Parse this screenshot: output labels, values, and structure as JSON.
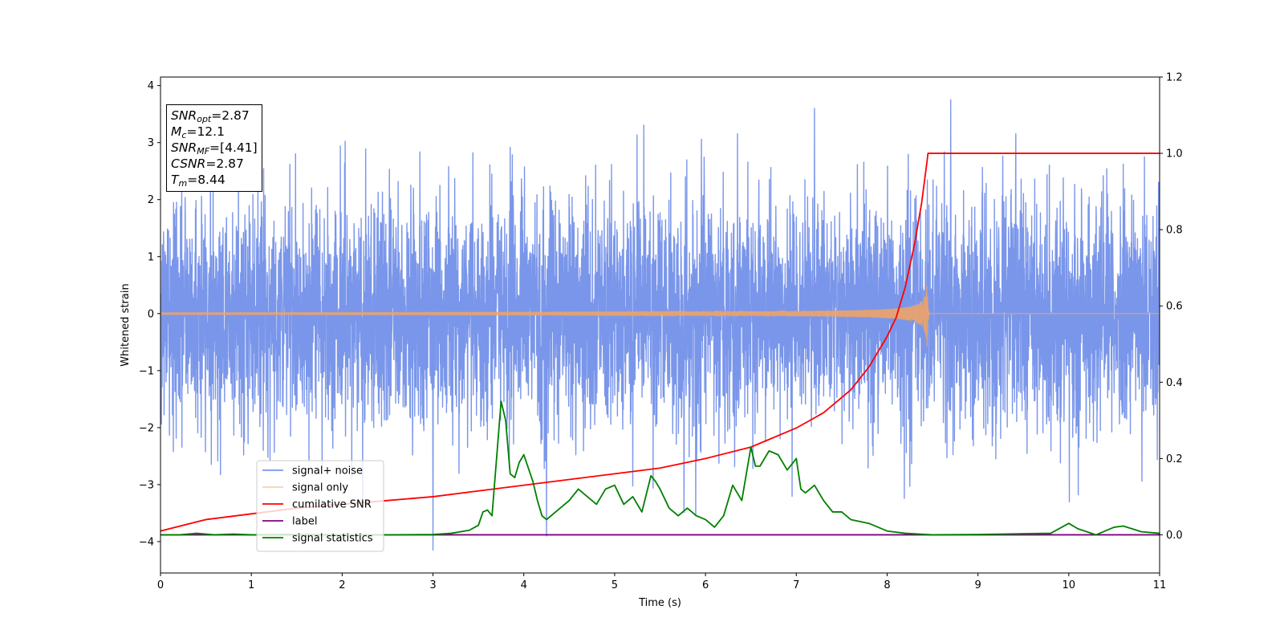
{
  "chart_data": {
    "type": "line",
    "title": "",
    "xlabel": "Time (s)",
    "ylabel": "Whitened strain",
    "y2label": "",
    "xlim": [
      0,
      11
    ],
    "ylim": [
      -4.55,
      4.15
    ],
    "y2lim": [
      -0.1,
      1.2
    ],
    "x_ticks": [
      0,
      1,
      2,
      3,
      4,
      5,
      6,
      7,
      8,
      9,
      10,
      11
    ],
    "y_ticks": [
      -4,
      -3,
      -2,
      -1,
      0,
      1,
      2,
      3,
      4
    ],
    "y2_ticks": [
      0.0,
      0.2,
      0.4,
      0.6,
      0.8,
      1.0,
      1.2
    ],
    "grid": false,
    "legend_position": "lower-left",
    "series": [
      {
        "name": "signal+ noise",
        "axis": "left",
        "color": "#4169e1",
        "description": "dense white noise, roughly within [-3.0, 3.0], peaks to about 3.75 near t=8.7 and about -4.15 near t=3.0",
        "noise_sigma": 1.0,
        "extremes": [
          [
            3.0,
            -4.15
          ],
          [
            8.7,
            3.75
          ],
          [
            7.2,
            3.6
          ],
          [
            4.25,
            -3.9
          ]
        ]
      },
      {
        "name": "signal only",
        "axis": "left",
        "color": "#f4a460",
        "description": "chirp that grows in amplitude until merger at t=8.44",
        "merger_time": 8.44,
        "peak_amplitude": 0.6
      },
      {
        "name": "cumilative SNR",
        "axis": "right",
        "color": "#ff0000",
        "x": [
          0,
          0.5,
          1,
          1.5,
          2,
          2.5,
          3,
          3.5,
          4,
          4.5,
          5,
          5.5,
          6,
          6.5,
          7,
          7.3,
          7.6,
          7.8,
          8.0,
          8.1,
          8.2,
          8.3,
          8.38,
          8.44,
          8.45,
          11
        ],
        "values": [
          0.01,
          0.04,
          0.055,
          0.07,
          0.08,
          0.09,
          0.1,
          0.115,
          0.13,
          0.145,
          0.16,
          0.175,
          0.2,
          0.23,
          0.28,
          0.32,
          0.38,
          0.44,
          0.52,
          0.57,
          0.65,
          0.76,
          0.87,
          0.98,
          1.0,
          1.0
        ]
      },
      {
        "name": "label",
        "axis": "right",
        "color": "#800080",
        "x": [
          0,
          11
        ],
        "values": [
          0.0,
          0.0
        ]
      },
      {
        "name": "signal statistics",
        "axis": "right",
        "color": "#008000",
        "x": [
          0,
          0.2,
          0.4,
          0.6,
          0.8,
          1.0,
          1.5,
          2.0,
          2.5,
          3.0,
          3.2,
          3.4,
          3.5,
          3.55,
          3.6,
          3.65,
          3.7,
          3.75,
          3.8,
          3.85,
          3.9,
          3.95,
          4.0,
          4.1,
          4.15,
          4.2,
          4.25,
          4.3,
          4.4,
          4.5,
          4.6,
          4.7,
          4.8,
          4.9,
          5.0,
          5.1,
          5.2,
          5.3,
          5.4,
          5.45,
          5.5,
          5.6,
          5.7,
          5.8,
          5.9,
          6.0,
          6.1,
          6.2,
          6.3,
          6.4,
          6.5,
          6.55,
          6.6,
          6.7,
          6.8,
          6.9,
          7.0,
          7.05,
          7.1,
          7.2,
          7.3,
          7.4,
          7.5,
          7.6,
          7.7,
          7.8,
          7.9,
          8.0,
          8.2,
          8.5,
          9.0,
          9.5,
          9.8,
          10.0,
          10.1,
          10.3,
          10.5,
          10.6,
          10.8,
          11.0
        ],
        "values": [
          0.0,
          0.0,
          0.004,
          0.0,
          0.002,
          0.0,
          0.001,
          0.0,
          0.0,
          0.001,
          0.004,
          0.012,
          0.025,
          0.06,
          0.065,
          0.05,
          0.2,
          0.35,
          0.3,
          0.16,
          0.15,
          0.19,
          0.21,
          0.14,
          0.09,
          0.05,
          0.04,
          0.05,
          0.07,
          0.09,
          0.12,
          0.1,
          0.08,
          0.12,
          0.13,
          0.08,
          0.1,
          0.06,
          0.155,
          0.14,
          0.12,
          0.07,
          0.05,
          0.07,
          0.05,
          0.04,
          0.02,
          0.05,
          0.13,
          0.09,
          0.23,
          0.18,
          0.18,
          0.22,
          0.21,
          0.17,
          0.2,
          0.12,
          0.11,
          0.13,
          0.09,
          0.06,
          0.06,
          0.04,
          0.035,
          0.03,
          0.02,
          0.01,
          0.004,
          0.0,
          0.001,
          0.003,
          0.004,
          0.03,
          0.016,
          0.0,
          0.02,
          0.023,
          0.008,
          0.004
        ]
      }
    ],
    "annotation": {
      "snr_opt": "2.87",
      "mc": "12.1",
      "snr_mf": "[4.41]",
      "csnr": "2.87",
      "tm": "8.44"
    }
  },
  "annotation_labels": {
    "snr_opt_base": "SNR",
    "snr_opt_sub": "opt",
    "mc_base": "M",
    "mc_sub": "c",
    "snr_mf_base": "SNR",
    "snr_mf_sub": "MF",
    "csnr_base": "CSNR",
    "tm_base": "T",
    "tm_sub": "m"
  }
}
